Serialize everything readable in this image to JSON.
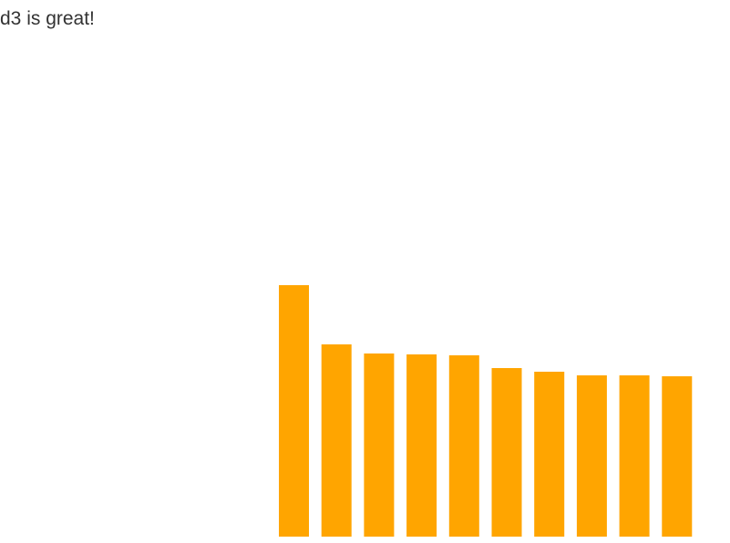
{
  "chart_data": {
    "type": "bar",
    "title": "d3 is great!",
    "values": [
      276,
      211,
      201,
      200,
      199,
      185,
      181,
      177,
      177,
      176
    ],
    "color": "#ffa500"
  }
}
